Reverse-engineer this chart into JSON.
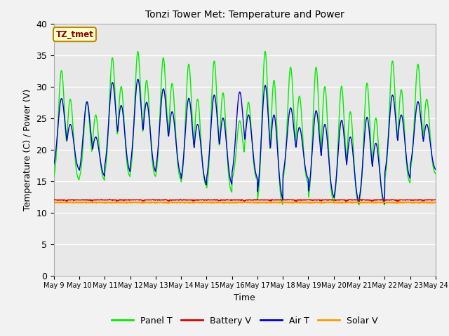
{
  "title": "Tonzi Tower Met: Temperature and Power",
  "xlabel": "Time",
  "ylabel": "Temperature (C) / Power (V)",
  "ylim": [
    0,
    40
  ],
  "yticks": [
    0,
    5,
    10,
    15,
    20,
    25,
    30,
    35,
    40
  ],
  "n_days": 15,
  "xtick_labels": [
    "May 9",
    "May 10",
    "May 11",
    "May 12",
    "May 13",
    "May 14",
    "May 15",
    "May 16",
    "May 17",
    "May 18",
    "May 19",
    "May 20",
    "May 21",
    "May 22",
    "May 23",
    "May 24"
  ],
  "bg_color": "#e8e8e8",
  "fig_bg_color": "#f2f2f2",
  "grid_color": "#ffffff",
  "panel_color": "#00ee00",
  "battery_color": "#dd0000",
  "air_color": "#0000cc",
  "solar_color": "#ff9900",
  "legend_labels": [
    "Panel T",
    "Battery V",
    "Air T",
    "Solar V"
  ],
  "annotation_text": "TZ_tmet",
  "annotation_bg": "#ffffcc",
  "annotation_border": "#bb8800",
  "panel_peaks": [
    32.5,
    27.5,
    34.5,
    35.5,
    34.5,
    33.5,
    34.0,
    24.5,
    35.5,
    33.0,
    33.0,
    30.0,
    30.5,
    34.0,
    33.5
  ],
  "panel_peaks2": [
    28.0,
    25.5,
    30.0,
    31.0,
    30.5,
    28.0,
    29.0,
    27.5,
    31.0,
    28.5,
    30.0,
    26.0,
    25.0,
    29.5,
    28.0
  ],
  "panel_troughs": [
    15.0,
    15.0,
    15.5,
    15.5,
    15.0,
    14.0,
    13.0,
    15.0,
    11.0,
    14.5,
    11.5,
    11.0,
    11.0,
    14.5,
    16.0
  ],
  "air_peaks": [
    28.0,
    27.5,
    30.5,
    31.0,
    29.5,
    28.0,
    28.5,
    29.0,
    30.0,
    26.5,
    26.0,
    24.5,
    25.0,
    28.5,
    27.5
  ],
  "air_peaks2": [
    24.0,
    22.0,
    27.0,
    27.5,
    26.0,
    24.0,
    25.0,
    25.5,
    25.5,
    23.5,
    24.0,
    22.0,
    21.0,
    25.5,
    24.0
  ],
  "air_troughs": [
    16.5,
    15.5,
    16.0,
    16.0,
    15.5,
    14.0,
    14.0,
    15.0,
    11.5,
    15.0,
    12.0,
    11.0,
    11.0,
    15.0,
    16.5
  ]
}
